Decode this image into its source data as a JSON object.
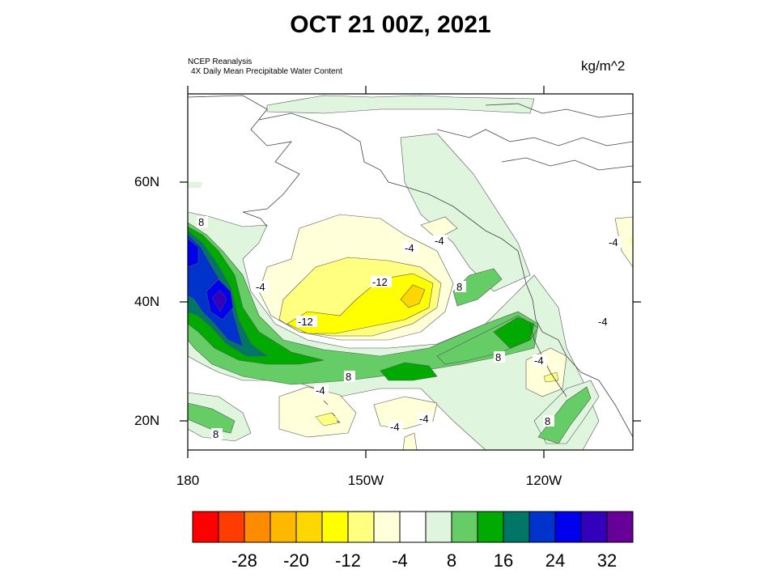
{
  "title": "OCT 21 00Z, 2021",
  "source_line1": "NCEP Reanalysis",
  "source_line2": "4X Daily Mean  Precipitable Water Content",
  "units": "kg/m^2",
  "lat_labels": [
    "60N",
    "40N",
    "20N"
  ],
  "lon_labels": [
    "180",
    "150W",
    "120W"
  ],
  "contour_labels": {
    "c1": "8",
    "c2": "-4",
    "c3": "-4",
    "c4": "-4",
    "c5": "-12",
    "c6": "8",
    "c7": "-4",
    "c8": "-4",
    "c9": "-12",
    "c10": "8",
    "c11": "-4",
    "c12": "8",
    "c13": "-4",
    "c14": "-4",
    "c15": "-4",
    "c16": "8",
    "c17": "8",
    "c18": "-4"
  },
  "colorbar": {
    "colors": [
      "#ff0000",
      "#ff3d00",
      "#ff8c00",
      "#ffb800",
      "#ffd700",
      "#ffff00",
      "#ffff80",
      "#ffffd9",
      "#ffffff",
      "#dff5dd",
      "#66cc66",
      "#00aa00",
      "#007766",
      "#0033cc",
      "#0000ee",
      "#3300bb",
      "#660099"
    ],
    "labels": [
      "-28",
      "-20",
      "-12",
      "-4",
      "8",
      "16",
      "24",
      "32"
    ]
  }
}
